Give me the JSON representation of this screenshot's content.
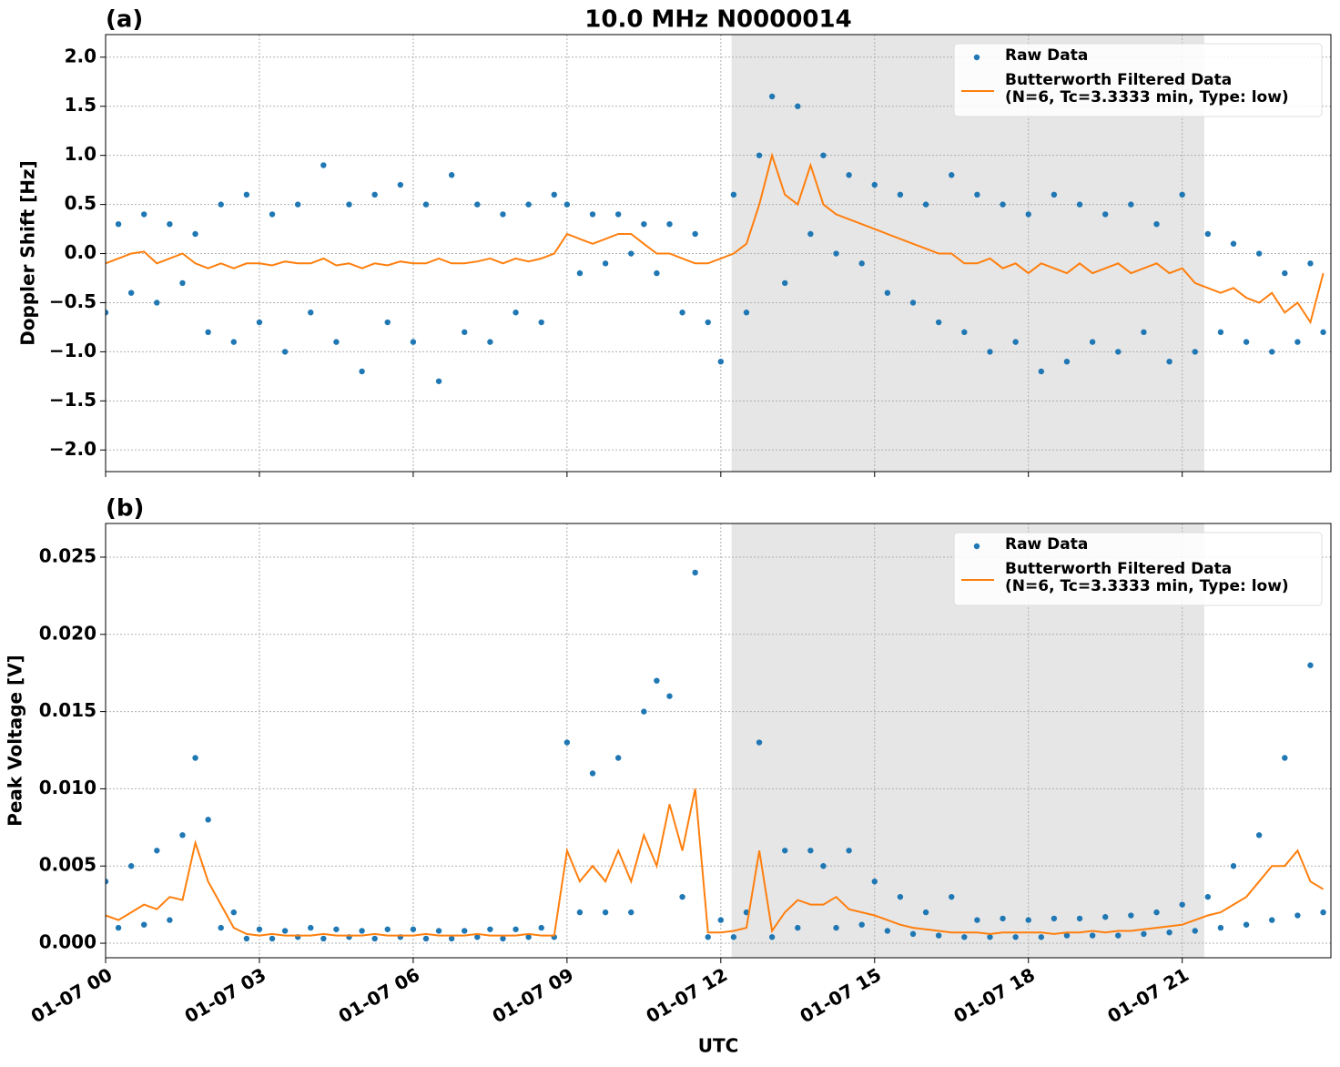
{
  "chart_data": [
    {
      "type": "line",
      "panel_label": "(a)",
      "title": "10.0 MHz N0000014",
      "ylabel": "Doppler Shift [Hz]",
      "xlim": [
        0,
        23.9
      ],
      "ylim": [
        -2.22,
        2.23
      ],
      "grid": true,
      "legend": "upper right",
      "shaded_span": [
        12.21,
        21.43
      ],
      "shade_color": "#e6e6e6",
      "xticks": [
        0,
        3,
        6,
        9,
        12,
        15,
        18,
        21
      ],
      "yticks": [
        {
          "value": -2,
          "label": "−2.0"
        },
        {
          "value": -1.5,
          "label": "−1.5"
        },
        {
          "value": -1,
          "label": "−1.0"
        },
        {
          "value": -0.5,
          "label": "−0.5"
        },
        {
          "value": 0,
          "label": "0.0"
        },
        0.5,
        {
          "value": 1,
          "label": "1.0"
        },
        1.5,
        {
          "value": 2,
          "label": "2.0"
        }
      ],
      "x": [
        0,
        0.25,
        0.5,
        0.75,
        1,
        1.25,
        1.5,
        1.75,
        2,
        2.25,
        2.5,
        2.75,
        3,
        3.25,
        3.5,
        3.75,
        4,
        4.25,
        4.5,
        4.75,
        5,
        5.25,
        5.5,
        5.75,
        6,
        6.25,
        6.5,
        6.75,
        7,
        7.25,
        7.5,
        7.75,
        8,
        8.25,
        8.5,
        8.75,
        9,
        9.25,
        9.5,
        9.75,
        10,
        10.25,
        10.5,
        10.75,
        11,
        11.25,
        11.5,
        11.75,
        12,
        12.25,
        12.5,
        12.75,
        13,
        13.25,
        13.5,
        13.75,
        14,
        14.25,
        14.5,
        14.75,
        15,
        15.25,
        15.5,
        15.75,
        16,
        16.25,
        16.5,
        16.75,
        17,
        17.25,
        17.5,
        17.75,
        18,
        18.25,
        18.5,
        18.75,
        19,
        19.25,
        19.5,
        19.75,
        20,
        20.25,
        20.5,
        20.75,
        21,
        21.25,
        21.5,
        21.75,
        22,
        22.25,
        22.5,
        22.75,
        23,
        23.25,
        23.5,
        23.75
      ],
      "series": [
        {
          "name": "Raw Data",
          "mark": "dot",
          "color": "#1f77b4",
          "values": [
            -0.6,
            0.3,
            -0.4,
            0.4,
            -0.5,
            0.3,
            -0.3,
            0.2,
            -0.8,
            0.5,
            -0.9,
            0.6,
            -0.7,
            0.4,
            -1.0,
            0.5,
            -0.6,
            0.9,
            -0.9,
            0.5,
            -1.2,
            0.6,
            -0.7,
            0.7,
            -0.9,
            0.5,
            -1.3,
            0.8,
            -0.8,
            0.5,
            -0.9,
            0.4,
            -0.6,
            0.5,
            -0.7,
            0.6,
            0.5,
            -0.2,
            0.4,
            -0.1,
            0.4,
            0.0,
            0.3,
            -0.2,
            0.3,
            -0.6,
            0.2,
            -0.7,
            -1.1,
            0.6,
            -0.6,
            1.0,
            1.6,
            -0.3,
            1.5,
            0.2,
            1.0,
            0.0,
            0.8,
            -0.1,
            0.7,
            -0.4,
            0.6,
            -0.5,
            0.5,
            -0.7,
            0.8,
            -0.8,
            0.6,
            -1.0,
            0.5,
            -0.9,
            0.4,
            -1.2,
            0.6,
            -1.1,
            0.5,
            -0.9,
            0.4,
            -1.0,
            0.5,
            -0.8,
            0.3,
            -1.1,
            0.6,
            -1.0,
            0.2,
            -0.8,
            0.1,
            -0.9,
            0.0,
            -1.0,
            -0.2,
            -0.9,
            -0.1,
            -0.8
          ]
        },
        {
          "name": "Butterworth Filtered Data\n(N=6, Tc=3.3333 min, Type: low)",
          "mark": "line",
          "color": "#ff7f0e",
          "values": [
            -0.1,
            -0.05,
            0,
            0.02,
            -0.1,
            -0.05,
            0,
            -0.1,
            -0.15,
            -0.1,
            -0.15,
            -0.1,
            -0.1,
            -0.12,
            -0.08,
            -0.1,
            -0.1,
            -0.05,
            -0.12,
            -0.1,
            -0.15,
            -0.1,
            -0.12,
            -0.08,
            -0.1,
            -0.1,
            -0.05,
            -0.1,
            -0.1,
            -0.08,
            -0.05,
            -0.1,
            -0.05,
            -0.08,
            -0.05,
            0,
            0.2,
            0.15,
            0.1,
            0.15,
            0.2,
            0.2,
            0.1,
            0.0,
            0.0,
            -0.05,
            -0.1,
            -0.1,
            -0.05,
            0.0,
            0.1,
            0.5,
            1.0,
            0.6,
            0.5,
            0.9,
            0.5,
            0.4,
            0.35,
            0.3,
            0.25,
            0.2,
            0.15,
            0.1,
            0.05,
            0,
            0,
            -0.1,
            -0.1,
            -0.05,
            -0.15,
            -0.1,
            -0.2,
            -0.1,
            -0.15,
            -0.2,
            -0.1,
            -0.2,
            -0.15,
            -0.1,
            -0.2,
            -0.15,
            -0.1,
            -0.2,
            -0.15,
            -0.3,
            -0.35,
            -0.4,
            -0.35,
            -0.45,
            -0.5,
            -0.4,
            -0.6,
            -0.5,
            -0.7,
            -0.2
          ]
        }
      ]
    },
    {
      "type": "line",
      "panel_label": "(b)",
      "ylabel": "Peak Voltage [V]",
      "xlabel": "UTC",
      "xlim": [
        0,
        23.9
      ],
      "ylim": [
        -0.00094,
        0.02718
      ],
      "grid": true,
      "legend": "upper right",
      "shaded_span": [
        12.21,
        21.43
      ],
      "shade_color": "#e6e6e6",
      "xticks": [
        {
          "value": 0,
          "label": "01-07 00"
        },
        {
          "value": 3,
          "label": "01-07 03"
        },
        {
          "value": 6,
          "label": "01-07 06"
        },
        {
          "value": 9,
          "label": "01-07 09"
        },
        {
          "value": 12,
          "label": "01-07 12"
        },
        {
          "value": 15,
          "label": "01-07 15"
        },
        {
          "value": 18,
          "label": "01-07 18"
        },
        {
          "value": 21,
          "label": "01-07 21"
        }
      ],
      "yticks": [
        {
          "value": 0,
          "label": "0.000"
        },
        0.005,
        {
          "value": 0.01,
          "label": "0.010"
        },
        0.015,
        {
          "value": 0.02,
          "label": "0.020"
        },
        0.025
      ],
      "x": [
        0,
        0.25,
        0.5,
        0.75,
        1,
        1.25,
        1.5,
        1.75,
        2,
        2.25,
        2.5,
        2.75,
        3,
        3.25,
        3.5,
        3.75,
        4,
        4.25,
        4.5,
        4.75,
        5,
        5.25,
        5.5,
        5.75,
        6,
        6.25,
        6.5,
        6.75,
        7,
        7.25,
        7.5,
        7.75,
        8,
        8.25,
        8.5,
        8.75,
        9,
        9.25,
        9.5,
        9.75,
        10,
        10.25,
        10.5,
        10.75,
        11,
        11.25,
        11.5,
        11.75,
        12,
        12.25,
        12.5,
        12.75,
        13,
        13.25,
        13.5,
        13.75,
        14,
        14.25,
        14.5,
        14.75,
        15,
        15.25,
        15.5,
        15.75,
        16,
        16.25,
        16.5,
        16.75,
        17,
        17.25,
        17.5,
        17.75,
        18,
        18.25,
        18.5,
        18.75,
        19,
        19.25,
        19.5,
        19.75,
        20,
        20.25,
        20.5,
        20.75,
        21,
        21.25,
        21.5,
        21.75,
        22,
        22.25,
        22.5,
        22.75,
        23,
        23.25,
        23.5,
        23.75
      ],
      "series": [
        {
          "name": "Raw Data",
          "mark": "dot",
          "color": "#1f77b4",
          "values": [
            0.004,
            0.001,
            0.005,
            0.0012,
            0.006,
            0.0015,
            0.007,
            0.012,
            0.008,
            0.001,
            0.002,
            0.0003,
            0.0009,
            0.0003,
            0.0008,
            0.0004,
            0.001,
            0.0003,
            0.0009,
            0.0004,
            0.0008,
            0.0003,
            0.0009,
            0.0004,
            0.0009,
            0.0003,
            0.0008,
            0.0003,
            0.0008,
            0.0004,
            0.0009,
            0.0003,
            0.0009,
            0.0004,
            0.001,
            0.0004,
            0.013,
            0.002,
            0.011,
            0.002,
            0.012,
            0.002,
            0.015,
            0.017,
            0.016,
            0.003,
            0.024,
            0.0004,
            0.0015,
            0.0004,
            0.002,
            0.013,
            0.0004,
            0.006,
            0.001,
            0.006,
            0.005,
            0.001,
            0.006,
            0.0012,
            0.004,
            0.0008,
            0.003,
            0.0006,
            0.002,
            0.0005,
            0.003,
            0.0004,
            0.0015,
            0.0004,
            0.0016,
            0.0004,
            0.0015,
            0.0004,
            0.0016,
            0.0005,
            0.0016,
            0.0005,
            0.0017,
            0.0005,
            0.0018,
            0.0006,
            0.002,
            0.0007,
            0.0025,
            0.0008,
            0.003,
            0.001,
            0.005,
            0.0012,
            0.007,
            0.0015,
            0.012,
            0.0018,
            0.018,
            0.002
          ]
        },
        {
          "name": "Butterworth Filtered Data\n(N=6, Tc=3.3333 min, Type: low)",
          "mark": "line",
          "color": "#ff7f0e",
          "values": [
            0.0018,
            0.0015,
            0.002,
            0.0025,
            0.0022,
            0.003,
            0.0028,
            0.0065,
            0.004,
            0.0025,
            0.001,
            0.0006,
            0.0005,
            0.0006,
            0.0005,
            0.0005,
            0.0005,
            0.0006,
            0.0005,
            0.0005,
            0.0005,
            0.0006,
            0.0005,
            0.0005,
            0.0005,
            0.0006,
            0.0005,
            0.0005,
            0.0005,
            0.0006,
            0.0005,
            0.0005,
            0.0005,
            0.0006,
            0.0005,
            0.0005,
            0.006,
            0.004,
            0.005,
            0.004,
            0.006,
            0.004,
            0.007,
            0.005,
            0.009,
            0.006,
            0.01,
            0.0007,
            0.0007,
            0.0008,
            0.001,
            0.006,
            0.0008,
            0.002,
            0.0028,
            0.0025,
            0.0025,
            0.003,
            0.0022,
            0.002,
            0.0018,
            0.0015,
            0.0012,
            0.001,
            0.0009,
            0.0008,
            0.0007,
            0.0007,
            0.0007,
            0.0006,
            0.0007,
            0.0007,
            0.0007,
            0.0007,
            0.0006,
            0.0007,
            0.0007,
            0.0008,
            0.0007,
            0.0008,
            0.0008,
            0.0009,
            0.001,
            0.0011,
            0.0012,
            0.0015,
            0.0018,
            0.002,
            0.0025,
            0.003,
            0.004,
            0.005,
            0.005,
            0.006,
            0.004,
            0.0035
          ]
        }
      ]
    }
  ]
}
